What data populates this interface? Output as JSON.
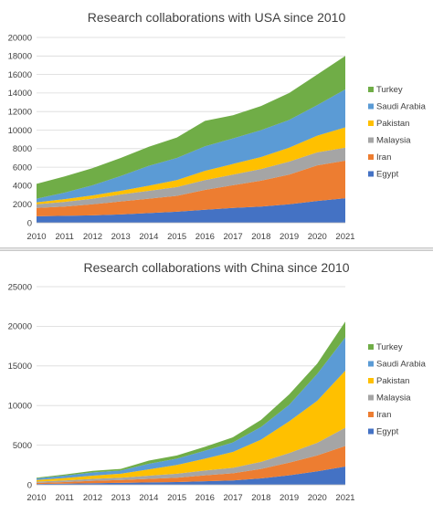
{
  "colors": {
    "Egypt": "#4472C4",
    "Iran": "#ED7D31",
    "Malaysia": "#A5A5A5",
    "Pakistan": "#FFC000",
    "Saudi Arabia": "#5B9BD5",
    "Turkey": "#70AD47"
  },
  "chart_data": [
    {
      "type": "area",
      "stacked": true,
      "title": "Research collaborations with USA since 2010",
      "x": [
        2010,
        2011,
        2012,
        2013,
        2014,
        2015,
        2016,
        2017,
        2018,
        2019,
        2020,
        2021
      ],
      "ylim": [
        0,
        20000
      ],
      "yticks": [
        0,
        2000,
        4000,
        6000,
        8000,
        10000,
        12000,
        14000,
        16000,
        18000,
        20000
      ],
      "legend_position": "right",
      "legend_order": [
        "Turkey",
        "Saudi Arabia",
        "Pakistan",
        "Malaysia",
        "Iran",
        "Egypt"
      ],
      "series": [
        {
          "name": "Egypt",
          "values": [
            700,
            750,
            800,
            900,
            1050,
            1200,
            1400,
            1600,
            1750,
            2000,
            2350,
            2650
          ]
        },
        {
          "name": "Iran",
          "values": [
            900,
            1000,
            1200,
            1400,
            1550,
            1700,
            2150,
            2450,
            2800,
            3200,
            3850,
            4050
          ]
        },
        {
          "name": "Malaysia",
          "values": [
            400,
            500,
            600,
            750,
            850,
            950,
            1050,
            1150,
            1250,
            1400,
            1400,
            1400
          ]
        },
        {
          "name": "Pakistan",
          "values": [
            200,
            300,
            350,
            400,
            550,
            750,
            1000,
            1150,
            1300,
            1500,
            1800,
            2200
          ]
        },
        {
          "name": "Saudi Arabia",
          "values": [
            400,
            700,
            1100,
            1600,
            2150,
            2400,
            2650,
            2750,
            2900,
            3000,
            3300,
            4100
          ]
        },
        {
          "name": "Turkey",
          "values": [
            1600,
            1750,
            1850,
            1950,
            2050,
            2200,
            2750,
            2500,
            2600,
            2900,
            3300,
            3600
          ]
        }
      ]
    },
    {
      "type": "area",
      "stacked": true,
      "title": "Research collaborations with China since 2010",
      "x": [
        2010,
        2011,
        2012,
        2013,
        2014,
        2015,
        2016,
        2017,
        2018,
        2019,
        2020,
        2021
      ],
      "ylim": [
        0,
        25000
      ],
      "yticks": [
        0,
        5000,
        10000,
        15000,
        20000,
        25000
      ],
      "legend_position": "right",
      "legend_order": [
        "Turkey",
        "Saudi Arabia",
        "Pakistan",
        "Malaysia",
        "Iran",
        "Egypt"
      ],
      "series": [
        {
          "name": "Egypt",
          "values": [
            100,
            150,
            200,
            250,
            300,
            350,
            450,
            550,
            800,
            1200,
            1700,
            2300
          ]
        },
        {
          "name": "Iran",
          "values": [
            150,
            200,
            300,
            350,
            450,
            550,
            750,
            900,
            1200,
            1600,
            2000,
            2600
          ]
        },
        {
          "name": "Malaysia",
          "values": [
            150,
            200,
            250,
            300,
            400,
            500,
            600,
            700,
            900,
            1200,
            1600,
            2300
          ]
        },
        {
          "name": "Pakistan",
          "values": [
            200,
            300,
            400,
            500,
            800,
            1100,
            1500,
            2000,
            2800,
            4000,
            5300,
            7200
          ]
        },
        {
          "name": "Saudi Arabia",
          "values": [
            200,
            300,
            400,
            400,
            700,
            800,
            1000,
            1200,
            1600,
            2100,
            3400,
            4200
          ]
        },
        {
          "name": "Turkey",
          "values": [
            100,
            150,
            200,
            200,
            400,
            400,
            500,
            650,
            900,
            1300,
            1300,
            2000
          ]
        }
      ]
    }
  ]
}
